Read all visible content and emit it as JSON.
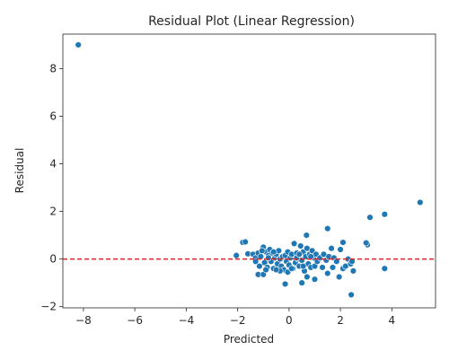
{
  "chart_data": {
    "type": "scatter",
    "title": "Residual Plot (Linear Regression)",
    "xlabel": "Predicted",
    "ylabel": "Residual",
    "xlim": [
      -8.8,
      5.7
    ],
    "ylim": [
      -2.05,
      9.45
    ],
    "xticks": [
      -8,
      -6,
      -4,
      -2,
      0,
      2,
      4
    ],
    "yticks": [
      -2,
      0,
      2,
      4,
      6,
      8
    ],
    "xtick_labels": [
      "−8",
      "−6",
      "−4",
      "−2",
      "0",
      "2",
      "4"
    ],
    "ytick_labels": [
      "−2",
      "0",
      "2",
      "4",
      "6",
      "8"
    ],
    "grid": false,
    "reference_line": {
      "y": 0,
      "style": "dashed",
      "color": "#d62728"
    },
    "point_color": "#1f77b4",
    "points": [
      [
        -8.2,
        9.0
      ],
      [
        5.1,
        2.38
      ],
      [
        3.72,
        1.88
      ],
      [
        3.15,
        1.75
      ],
      [
        3.05,
        0.6
      ],
      [
        3.0,
        0.68
      ],
      [
        3.72,
        -0.4
      ],
      [
        2.42,
        -1.5
      ],
      [
        0.68,
        1.0
      ],
      [
        1.5,
        1.28
      ],
      [
        2.1,
        0.7
      ],
      [
        -1.8,
        0.7
      ],
      [
        -1.7,
        0.72
      ],
      [
        -2.05,
        0.15
      ],
      [
        -1.6,
        0.22
      ],
      [
        -1.4,
        0.2
      ],
      [
        -1.3,
        0.05
      ],
      [
        -1.2,
        0.25
      ],
      [
        -1.15,
        -0.3
      ],
      [
        -1.1,
        0.1
      ],
      [
        -1.0,
        0.5
      ],
      [
        -0.95,
        -0.15
      ],
      [
        -0.9,
        0.3
      ],
      [
        -0.85,
        -0.35
      ],
      [
        -0.8,
        0.15
      ],
      [
        -0.75,
        0.4
      ],
      [
        -0.7,
        -0.1
      ],
      [
        -0.65,
        0.25
      ],
      [
        -0.6,
        -0.4
      ],
      [
        -0.55,
        0.05
      ],
      [
        -0.5,
        0.2
      ],
      [
        -0.45,
        -0.2
      ],
      [
        -0.4,
        0.35
      ],
      [
        -0.35,
        0.0
      ],
      [
        -0.3,
        -0.3
      ],
      [
        -0.25,
        0.1
      ],
      [
        -0.2,
        -0.45
      ],
      [
        -0.15,
        0.15
      ],
      [
        -0.1,
        -0.1
      ],
      [
        -0.05,
        0.3
      ],
      [
        0.0,
        -0.25
      ],
      [
        0.05,
        0.05
      ],
      [
        0.1,
        0.2
      ],
      [
        0.15,
        -0.4
      ],
      [
        0.2,
        0.65
      ],
      [
        0.25,
        -0.15
      ],
      [
        0.3,
        0.25
      ],
      [
        0.35,
        0.0
      ],
      [
        0.4,
        -0.3
      ],
      [
        0.45,
        0.55
      ],
      [
        0.5,
        -0.05
      ],
      [
        0.55,
        0.3
      ],
      [
        0.6,
        -0.5
      ],
      [
        0.65,
        0.1
      ],
      [
        0.7,
        0.45
      ],
      [
        0.75,
        -0.2
      ],
      [
        0.8,
        0.2
      ],
      [
        0.85,
        -0.35
      ],
      [
        0.9,
        0.35
      ],
      [
        0.95,
        0.05
      ],
      [
        1.0,
        -0.3
      ],
      [
        1.05,
        0.2
      ],
      [
        1.1,
        -0.1
      ],
      [
        1.2,
        0.05
      ],
      [
        1.3,
        -0.35
      ],
      [
        1.35,
        0.2
      ],
      [
        1.45,
        -0.05
      ],
      [
        1.55,
        0.1
      ],
      [
        1.65,
        0.45
      ],
      [
        1.7,
        -0.35
      ],
      [
        1.75,
        0.05
      ],
      [
        1.85,
        -0.1
      ],
      [
        1.95,
        -0.75
      ],
      [
        2.0,
        0.4
      ],
      [
        2.1,
        -0.4
      ],
      [
        2.2,
        -0.3
      ],
      [
        2.3,
        0.0
      ],
      [
        2.4,
        -0.2
      ],
      [
        2.45,
        -0.1
      ],
      [
        2.5,
        -0.5
      ],
      [
        -0.15,
        -1.05
      ],
      [
        0.5,
        -1.0
      ],
      [
        0.7,
        -0.75
      ],
      [
        1.0,
        -0.85
      ],
      [
        -1.2,
        -0.65
      ],
      [
        -1.0,
        -0.65
      ],
      [
        -1.3,
        -0.1
      ],
      [
        -0.9,
        -0.45
      ],
      [
        -0.6,
        0.3
      ],
      [
        -0.35,
        -0.5
      ],
      [
        -0.05,
        -0.55
      ],
      [
        0.3,
        0.05
      ],
      [
        0.55,
        -0.3
      ],
      [
        -0.8,
        0.05
      ],
      [
        -1.05,
        0.35
      ],
      [
        0.85,
        0.1
      ],
      [
        1.5,
        -0.6
      ],
      [
        0.1,
        -0.4
      ],
      [
        -0.5,
        -0.45
      ],
      [
        0.4,
        0.2
      ]
    ]
  }
}
